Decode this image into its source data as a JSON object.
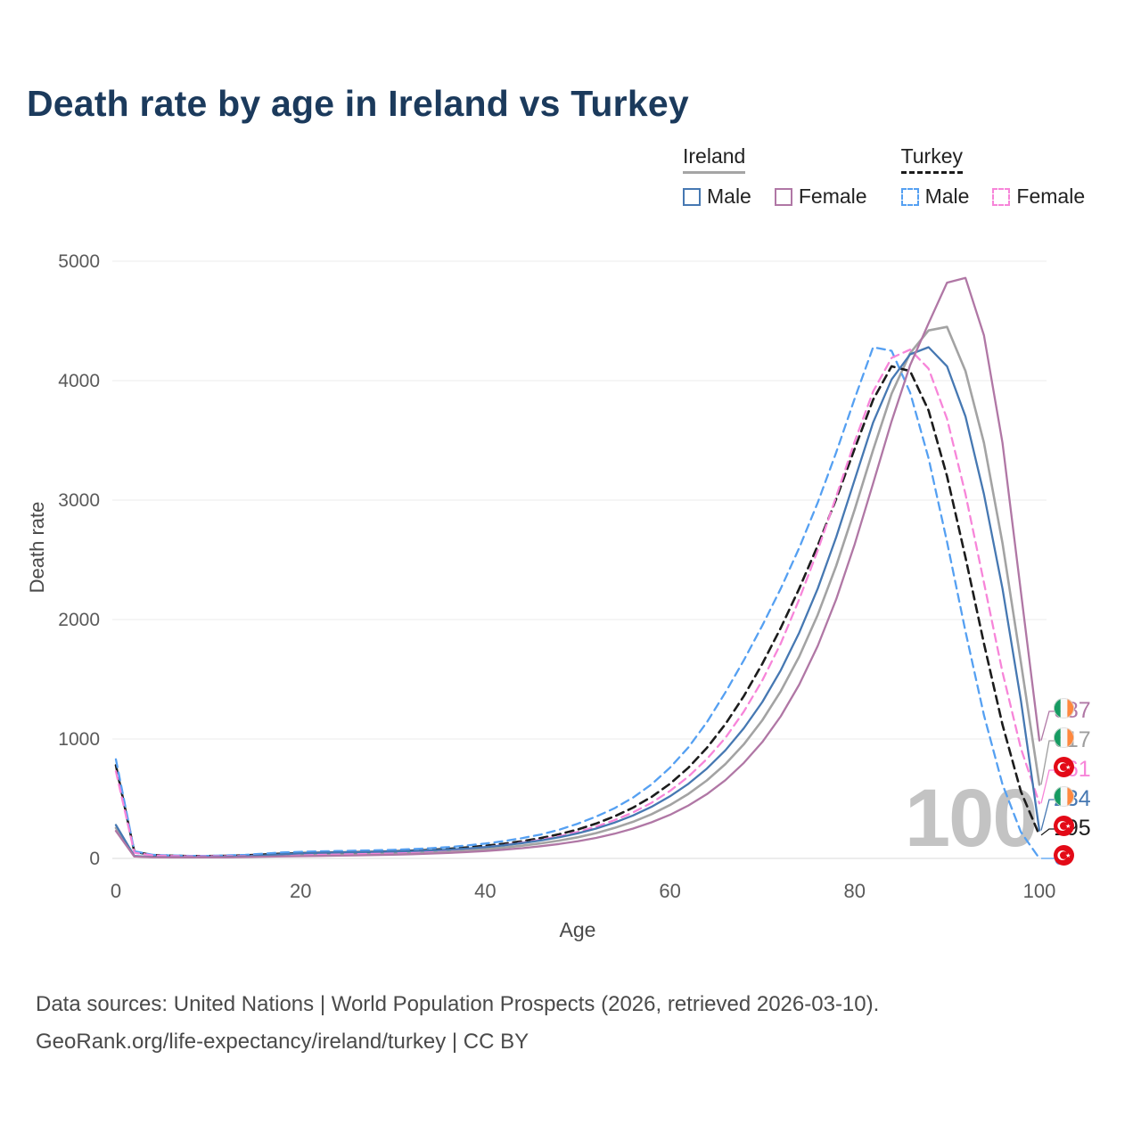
{
  "title": "Death rate by age in Ireland vs Turkey",
  "watermark": "100",
  "axes": {
    "x_label": "Age",
    "y_label": "Death rate",
    "x_ticks": [
      0,
      20,
      40,
      60,
      80,
      100
    ],
    "y_ticks": [
      0,
      1000,
      2000,
      3000,
      4000,
      5000
    ]
  },
  "legend": {
    "groups": [
      {
        "name": "Ireland",
        "line_style": "solid",
        "line_color": "#a5a5a5",
        "items": [
          {
            "label": "Male",
            "color": "#4678b2",
            "dash": false
          },
          {
            "label": "Female",
            "color": "#b077a5",
            "dash": false
          }
        ]
      },
      {
        "name": "Turkey",
        "line_style": "dashed",
        "line_color": "#1c1c1c",
        "items": [
          {
            "label": "Male",
            "color": "#55a0f2",
            "dash": true
          },
          {
            "label": "Female",
            "color": "#f785d9",
            "dash": true
          }
        ]
      }
    ]
  },
  "chart_data": {
    "type": "line",
    "title": "Death rate by age in Ireland vs Turkey",
    "xlabel": "Age",
    "ylabel": "Death rate",
    "xlim": [
      0,
      100
    ],
    "ylim": [
      0,
      5000
    ],
    "x_ticks": [
      0,
      20,
      40,
      60,
      80,
      100
    ],
    "y_ticks": [
      0,
      1000,
      2000,
      3000,
      4000,
      5000
    ],
    "grid": "horizontal",
    "legend_position": "top-right",
    "x": [
      0,
      2,
      4,
      6,
      8,
      10,
      12,
      14,
      16,
      18,
      20,
      22,
      24,
      26,
      28,
      30,
      32,
      34,
      36,
      38,
      40,
      42,
      44,
      46,
      48,
      50,
      52,
      54,
      56,
      58,
      60,
      62,
      64,
      66,
      68,
      70,
      72,
      74,
      76,
      78,
      80,
      82,
      84,
      86,
      88,
      90,
      92,
      94,
      96,
      98,
      100
    ],
    "series": [
      {
        "id": "ireland-all",
        "name": "Ireland (both sexes)",
        "country": "Ireland",
        "color": "#a3a3a3",
        "dash": false,
        "width": 2.6,
        "end_value": 617,
        "values": [
          255,
          18,
          11,
          9,
          9,
          10,
          12,
          15,
          20,
          27,
          32,
          36,
          38,
          40,
          42,
          45,
          49,
          54,
          60,
          68,
          78,
          91,
          107,
          126,
          149,
          177,
          212,
          255,
          307,
          370,
          447,
          540,
          653,
          790,
          956,
          1157,
          1400,
          1690,
          2040,
          2450,
          2920,
          3420,
          3890,
          4230,
          4420,
          4450,
          4080,
          3480,
          2640,
          1640,
          617
        ]
      },
      {
        "id": "turkey-all",
        "name": "Turkey (both sexes)",
        "country": "Turkey",
        "color": "#1c1c1c",
        "dash": true,
        "width": 2.6,
        "end_value": 195,
        "values": [
          780,
          55,
          28,
          23,
          20,
          20,
          22,
          26,
          33,
          40,
          44,
          48,
          50,
          53,
          56,
          60,
          65,
          72,
          80,
          92,
          106,
          123,
          144,
          170,
          202,
          242,
          292,
          352,
          425,
          515,
          625,
          760,
          925,
          1125,
          1360,
          1630,
          1930,
          2260,
          2620,
          3010,
          3430,
          3840,
          4120,
          4080,
          3750,
          3200,
          2520,
          1800,
          1120,
          560,
          195
        ]
      },
      {
        "id": "turkey-male",
        "name": "Turkey Male",
        "country": "Turkey",
        "color": "#55a0f2",
        "dash": true,
        "width": 2.3,
        "end_value": 0,
        "values": [
          830,
          60,
          30,
          25,
          22,
          22,
          25,
          30,
          40,
          50,
          55,
          60,
          62,
          65,
          68,
          72,
          78,
          85,
          95,
          108,
          125,
          145,
          170,
          200,
          240,
          290,
          350,
          420,
          510,
          620,
          760,
          930,
          1140,
          1390,
          1660,
          1950,
          2260,
          2600,
          2980,
          3400,
          3850,
          4280,
          4250,
          3900,
          3350,
          2650,
          1900,
          1200,
          620,
          220,
          0
        ]
      },
      {
        "id": "turkey-female",
        "name": "Turkey Female",
        "country": "Turkey",
        "color": "#f785d9",
        "dash": true,
        "width": 2.3,
        "end_value": 461,
        "values": [
          730,
          48,
          25,
          20,
          18,
          18,
          19,
          21,
          24,
          27,
          30,
          33,
          36,
          39,
          43,
          48,
          54,
          61,
          70,
          81,
          95,
          112,
          132,
          156,
          186,
          222,
          266,
          320,
          386,
          466,
          565,
          685,
          832,
          1010,
          1230,
          1490,
          1800,
          2170,
          2580,
          3030,
          3490,
          3910,
          4190,
          4260,
          4100,
          3680,
          3050,
          2310,
          1560,
          920,
          461
        ]
      },
      {
        "id": "ireland-male",
        "name": "Ireland Male",
        "country": "Ireland",
        "color": "#4678b2",
        "dash": false,
        "width": 2.3,
        "end_value": 234,
        "values": [
          280,
          20,
          12,
          10,
          10,
          11,
          13,
          17,
          25,
          35,
          42,
          47,
          50,
          52,
          55,
          58,
          62,
          67,
          74,
          83,
          95,
          110,
          128,
          150,
          177,
          210,
          250,
          300,
          360,
          432,
          520,
          625,
          752,
          905,
          1090,
          1310,
          1575,
          1890,
          2260,
          2690,
          3170,
          3650,
          4010,
          4220,
          4280,
          4120,
          3700,
          3050,
          2260,
          1320,
          234
        ]
      },
      {
        "id": "ireland-female",
        "name": "Ireland Female",
        "country": "Ireland",
        "color": "#b077a5",
        "dash": false,
        "width": 2.3,
        "end_value": 987,
        "values": [
          230,
          16,
          10,
          8,
          8,
          8,
          9,
          11,
          14,
          17,
          19,
          21,
          23,
          25,
          28,
          31,
          35,
          40,
          46,
          53,
          62,
          73,
          86,
          102,
          121,
          144,
          172,
          207,
          250,
          302,
          365,
          443,
          538,
          655,
          800,
          975,
          1190,
          1455,
          1780,
          2170,
          2630,
          3140,
          3660,
          4130,
          4480,
          4820,
          4860,
          4380,
          3480,
          2230,
          987
        ]
      }
    ]
  },
  "end_labels": [
    {
      "value": "987",
      "series_id": "ireland-female",
      "flag": "ireland",
      "color": "#b077a5"
    },
    {
      "value": "617",
      "series_id": "ireland-all",
      "flag": "ireland",
      "color": "#9e9e9e"
    },
    {
      "value": "461",
      "series_id": "turkey-female",
      "flag": "turkey",
      "color": "#f785d9"
    },
    {
      "value": "234",
      "series_id": "ireland-male",
      "flag": "ireland",
      "color": "#4678b2"
    },
    {
      "value": "195",
      "series_id": "turkey-all",
      "flag": "turkey",
      "color": "#1c1c1c"
    },
    {
      "value": "0",
      "series_id": "turkey-male",
      "flag": "turkey",
      "color": "#55a0f2"
    }
  ],
  "footer": {
    "line1": "Data sources: United Nations | World Population Prospects (2026, retrieved 2026-03-10).",
    "line2": "GeoRank.org/life-expectancy/ireland/turkey | CC BY"
  }
}
